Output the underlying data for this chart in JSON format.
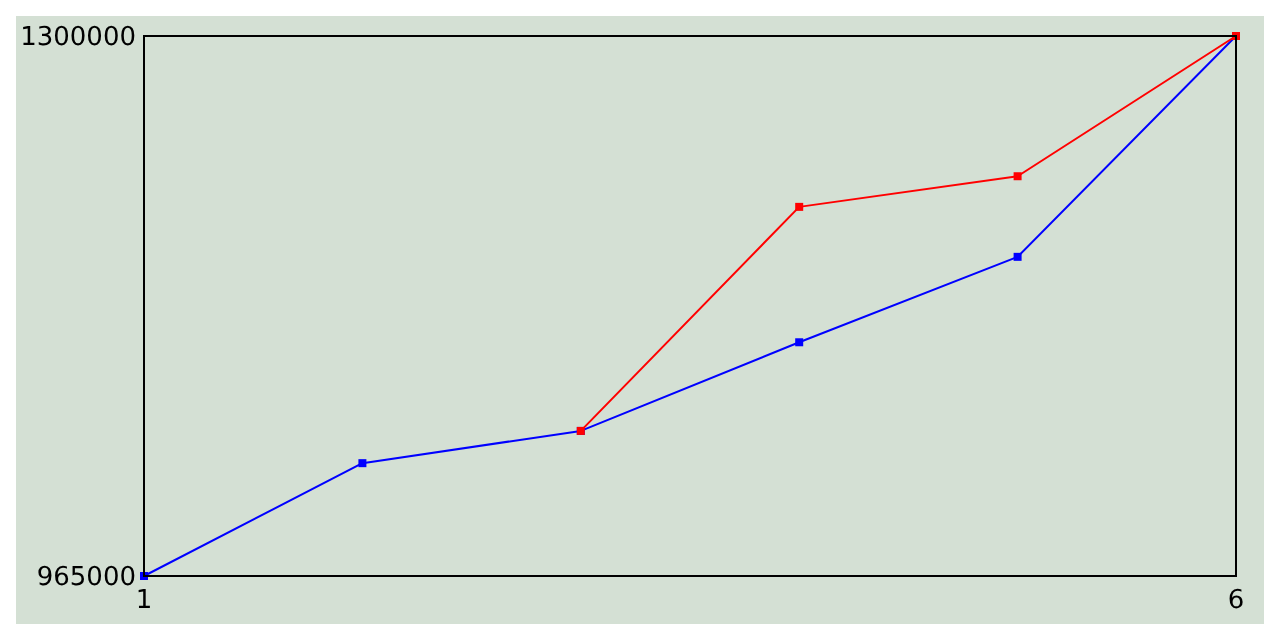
{
  "chart_data": {
    "type": "line",
    "x": [
      1,
      2,
      3,
      4,
      5,
      6
    ],
    "xlim": [
      1,
      6
    ],
    "xticks": [
      1,
      6
    ],
    "ylim": [
      965000,
      1300000
    ],
    "yticks": [
      965000,
      1300000
    ],
    "marker": "square",
    "series": [
      {
        "color": "#0000ff",
        "values": [
          965000,
          1035000,
          1055000,
          1110000,
          1163000,
          1300000
        ]
      },
      {
        "color": "#ff0000",
        "values": [
          null,
          null,
          1055000,
          1194000,
          1213000,
          1300000
        ]
      }
    ]
  }
}
